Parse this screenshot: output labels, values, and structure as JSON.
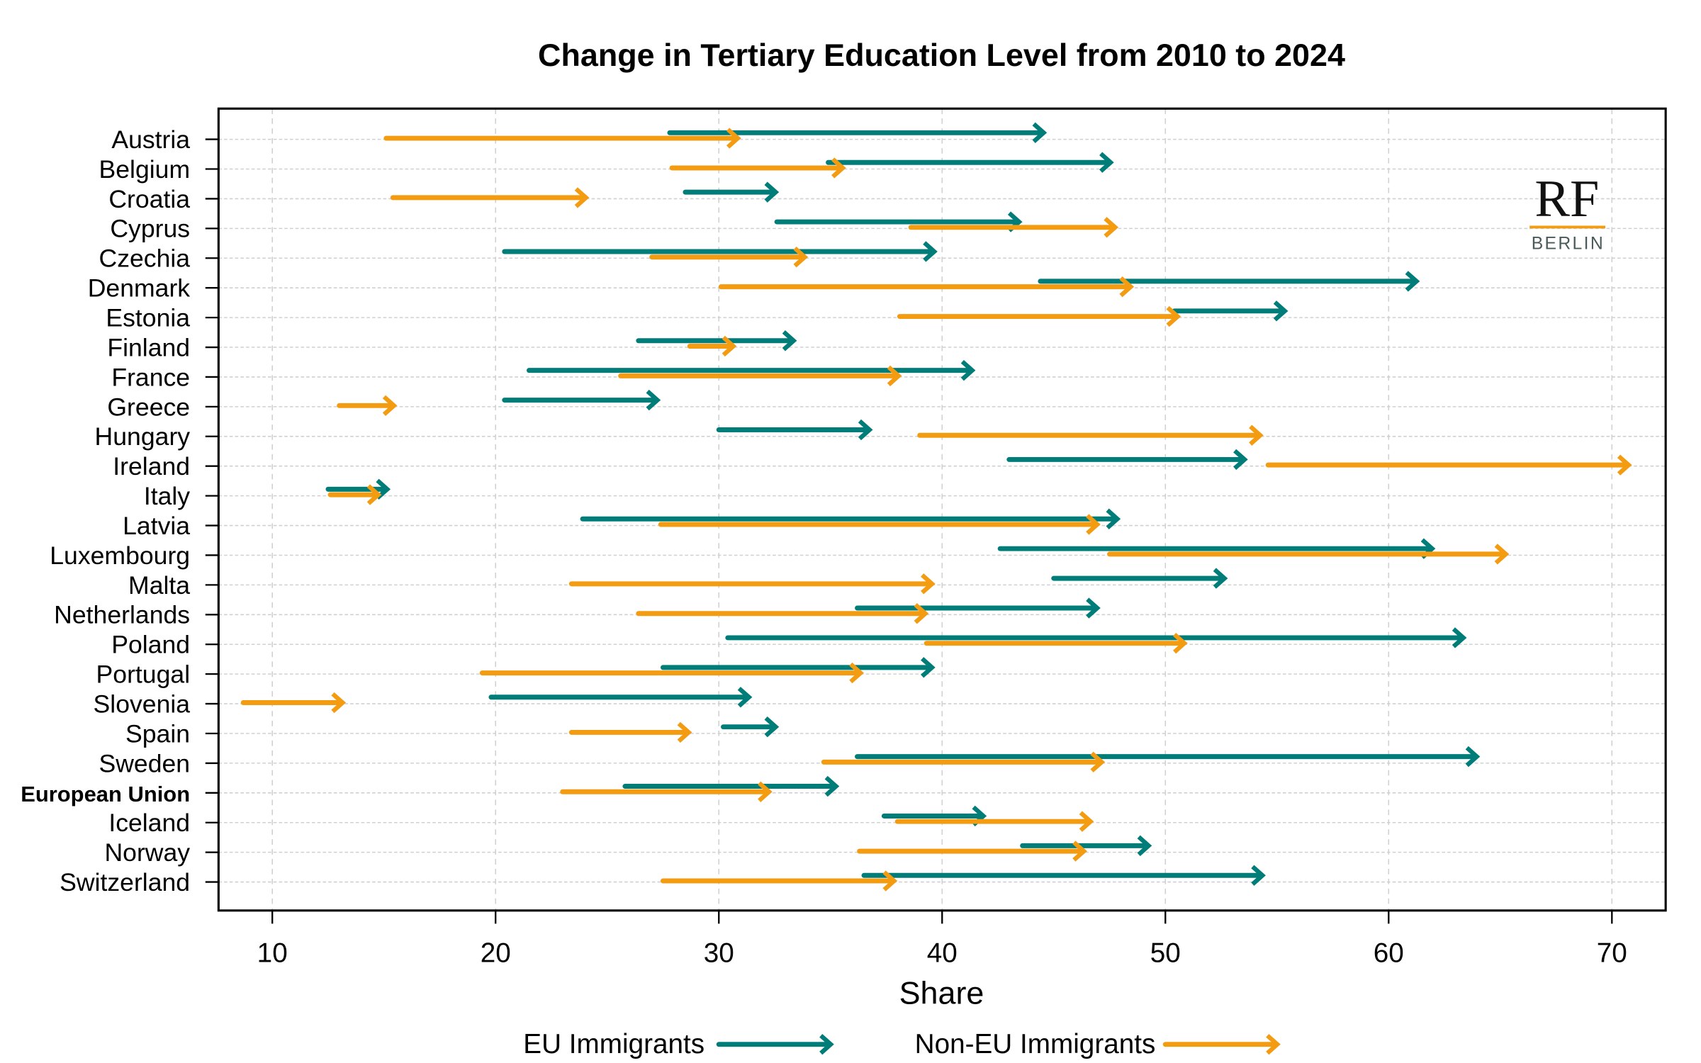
{
  "chart_data": {
    "type": "arrow-dumbbell",
    "title": "Change in Tertiary Education Level from 2010 to 2024",
    "xlabel": "Share",
    "ylabel": "",
    "xlim": [
      7.6,
      72.5
    ],
    "xticks": [
      10,
      20,
      30,
      40,
      50,
      60,
      70
    ],
    "grid": true,
    "legend_position": "bottom",
    "colors": {
      "eu": "#007D78",
      "noneu": "#F39C12"
    },
    "series": [
      {
        "name": "EU Immigrants",
        "key": "eu"
      },
      {
        "name": "Non-EU Immigrants",
        "key": "noneu"
      }
    ],
    "countries": [
      {
        "name": "Austria",
        "eu": [
          27.8,
          44.5
        ],
        "noneu": [
          15.1,
          30.8
        ]
      },
      {
        "name": "Belgium",
        "eu": [
          34.9,
          47.5
        ],
        "noneu": [
          27.9,
          35.5
        ]
      },
      {
        "name": "Croatia",
        "eu": [
          28.5,
          32.5
        ],
        "noneu": [
          15.4,
          24.0
        ]
      },
      {
        "name": "Cyprus",
        "eu": [
          32.6,
          43.4
        ],
        "noneu": [
          38.6,
          47.7
        ]
      },
      {
        "name": "Czechia",
        "eu": [
          20.4,
          39.6
        ],
        "noneu": [
          27.0,
          33.8
        ]
      },
      {
        "name": "Denmark",
        "eu": [
          44.4,
          61.2
        ],
        "noneu": [
          30.1,
          48.4
        ]
      },
      {
        "name": "Estonia",
        "eu": [
          50.4,
          55.3
        ],
        "noneu": [
          38.1,
          50.5
        ]
      },
      {
        "name": "Finland",
        "eu": [
          26.4,
          33.3
        ],
        "noneu": [
          28.7,
          30.6
        ]
      },
      {
        "name": "France",
        "eu": [
          21.5,
          41.3
        ],
        "noneu": [
          25.6,
          38.0
        ]
      },
      {
        "name": "Greece",
        "eu": [
          20.4,
          27.2
        ],
        "noneu": [
          13.0,
          15.4
        ]
      },
      {
        "name": "Hungary",
        "eu": [
          30.0,
          36.7
        ],
        "noneu": [
          39.0,
          54.2
        ]
      },
      {
        "name": "Ireland",
        "eu": [
          43.0,
          53.5
        ],
        "noneu": [
          54.6,
          70.7
        ]
      },
      {
        "name": "Italy",
        "eu": [
          12.5,
          15.1
        ],
        "noneu": [
          12.6,
          14.7
        ]
      },
      {
        "name": "Latvia",
        "eu": [
          23.9,
          47.8
        ],
        "noneu": [
          27.4,
          46.9
        ]
      },
      {
        "name": "Luxembourg",
        "eu": [
          42.6,
          61.9
        ],
        "noneu": [
          47.5,
          65.2
        ]
      },
      {
        "name": "Malta",
        "eu": [
          45.0,
          52.6
        ],
        "noneu": [
          23.4,
          39.5
        ]
      },
      {
        "name": "Netherlands",
        "eu": [
          36.2,
          46.9
        ],
        "noneu": [
          26.4,
          39.2
        ]
      },
      {
        "name": "Poland",
        "eu": [
          30.4,
          63.3
        ],
        "noneu": [
          39.3,
          50.8
        ]
      },
      {
        "name": "Portugal",
        "eu": [
          27.5,
          39.5
        ],
        "noneu": [
          19.4,
          36.3
        ]
      },
      {
        "name": "Slovenia",
        "eu": [
          19.8,
          31.3
        ],
        "noneu": [
          8.7,
          13.1
        ]
      },
      {
        "name": "Spain",
        "eu": [
          30.2,
          32.5
        ],
        "noneu": [
          23.4,
          28.6
        ]
      },
      {
        "name": "Sweden",
        "eu": [
          36.2,
          63.9
        ],
        "noneu": [
          34.7,
          47.1
        ]
      },
      {
        "name": "European Union",
        "bold": true,
        "eu": [
          25.8,
          35.2
        ],
        "noneu": [
          23.0,
          32.2
        ]
      },
      {
        "name": "Iceland",
        "eu": [
          37.4,
          41.8
        ],
        "noneu": [
          38.0,
          46.6
        ]
      },
      {
        "name": "Norway",
        "eu": [
          43.6,
          49.2
        ],
        "noneu": [
          36.3,
          46.3
        ]
      },
      {
        "name": "Switzerland",
        "eu": [
          36.5,
          54.3
        ],
        "noneu": [
          27.5,
          37.8
        ]
      }
    ]
  },
  "logo": {
    "main": "RF",
    "sub": "BERLIN"
  }
}
